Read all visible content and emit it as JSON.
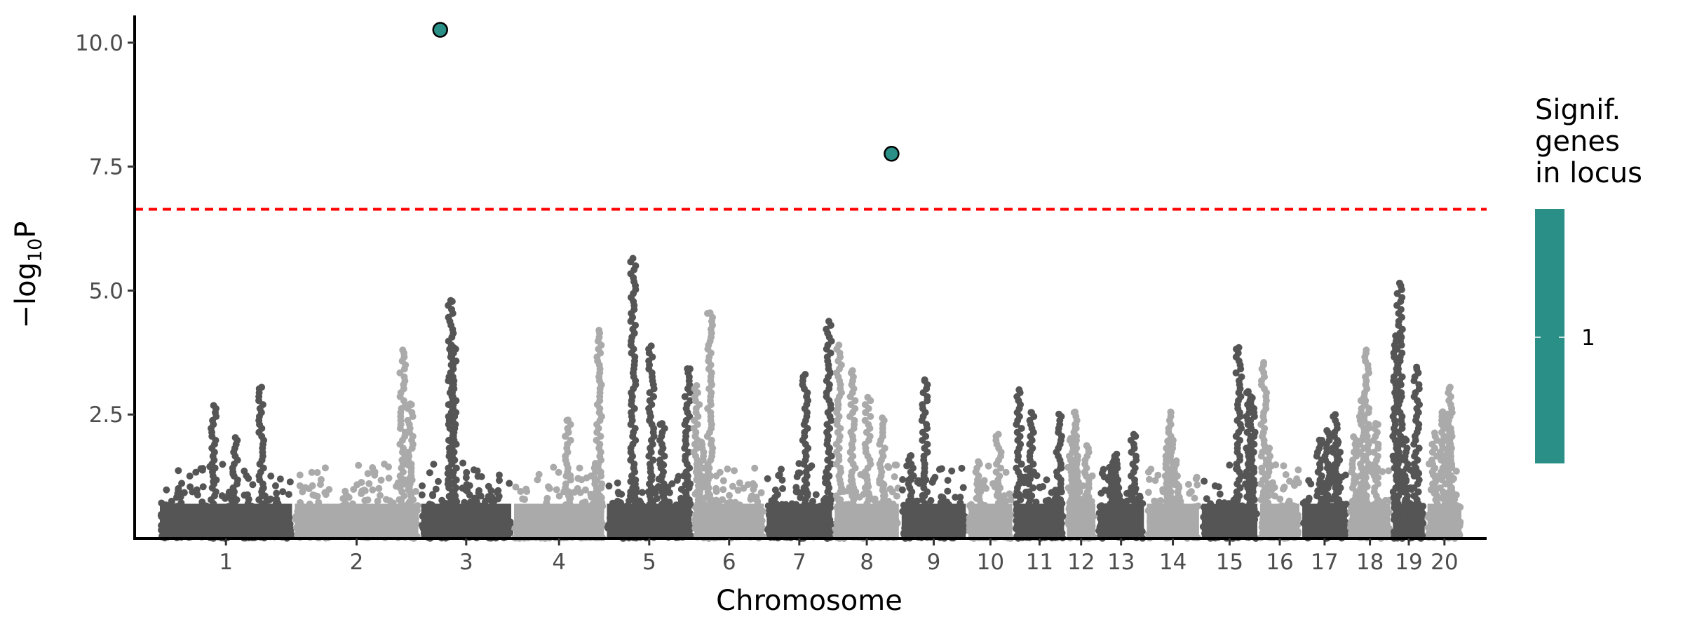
{
  "chart_data": {
    "type": "scatter",
    "subtype": "manhattan",
    "title": "",
    "xlabel": "Chromosome",
    "ylabel_prefix": "−log",
    "ylabel_sub": "10",
    "ylabel_suffix": "P",
    "ylim": [
      0,
      10.55
    ],
    "yticks": [
      2.5,
      5.0,
      7.5,
      10.0
    ],
    "ytick_labels": [
      "2.5",
      "5.0",
      "7.5",
      "10.0"
    ],
    "significance_threshold": 6.64,
    "colors": {
      "odd": "#555555",
      "even": "#aaaaaa",
      "threshold": "#ff0000",
      "significant": "#2a9087"
    },
    "chromosomes": [
      {
        "label": "1",
        "rel_length": 125,
        "max": 3.05
      },
      {
        "label": "2",
        "rel_length": 117,
        "max": 3.8
      },
      {
        "label": "3",
        "rel_length": 86,
        "max": 4.8
      },
      {
        "label": "4",
        "rel_length": 86,
        "max": 4.2
      },
      {
        "label": "5",
        "rel_length": 81,
        "max": 5.65
      },
      {
        "label": "6",
        "rel_length": 67,
        "max": 4.55
      },
      {
        "label": "7",
        "rel_length": 63,
        "max": 4.38
      },
      {
        "label": "8",
        "rel_length": 62,
        "max": 3.9
      },
      {
        "label": "9",
        "rel_length": 62,
        "max": 3.2
      },
      {
        "label": "10",
        "rel_length": 43,
        "max": 2.1
      },
      {
        "label": "11",
        "rel_length": 48,
        "max": 3.0
      },
      {
        "label": "12",
        "rel_length": 29,
        "max": 2.55
      },
      {
        "label": "13",
        "rel_length": 45,
        "max": 2.1
      },
      {
        "label": "14",
        "rel_length": 51,
        "max": 2.55
      },
      {
        "label": "15",
        "rel_length": 54,
        "max": 3.85
      },
      {
        "label": "16",
        "rel_length": 39,
        "max": 3.55
      },
      {
        "label": "17",
        "rel_length": 44,
        "max": 2.5
      },
      {
        "label": "18",
        "rel_length": 40,
        "max": 3.8
      },
      {
        "label": "19",
        "rel_length": 32,
        "max": 5.15
      },
      {
        "label": "20",
        "rel_length": 34,
        "max": 3.05
      }
    ],
    "significant_points": [
      {
        "chromosome": "3",
        "position_fraction": 0.22,
        "value": 10.26,
        "genes_in_locus": 1
      },
      {
        "chromosome": "8",
        "position_fraction": 0.87,
        "value": 7.76,
        "genes_in_locus": 1
      }
    ],
    "legend": {
      "title_lines": [
        "Signif.",
        "genes",
        "in locus"
      ],
      "labels": [
        "1"
      ],
      "placement": "right"
    }
  }
}
